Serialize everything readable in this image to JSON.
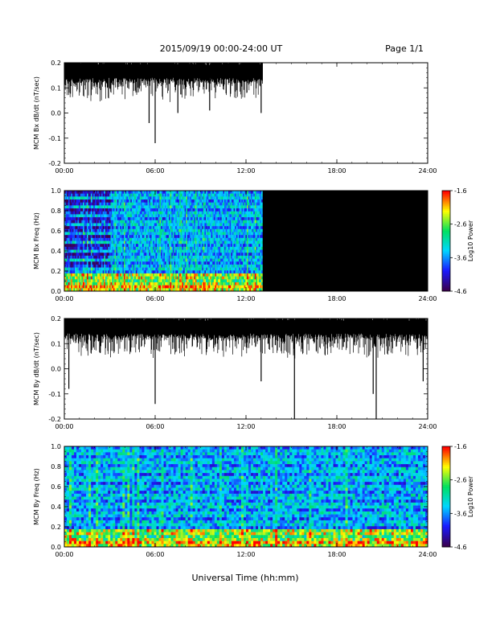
{
  "header": {
    "date_range": "2015/09/19  00:00-24:00 UT",
    "page": "Page 1/1"
  },
  "colors": {
    "trace": "#000000",
    "no_data": "#000000",
    "colormap": [
      "#3a0050",
      "#1a1aff",
      "#00d7ff",
      "#00e060",
      "#ffff00",
      "#ff0000"
    ]
  },
  "chart_data": [
    {
      "id": "bx_dbdt",
      "type": "line",
      "ylabel": "MCM Bx dB/dt (nT/sec)",
      "ylim": [
        -0.2,
        0.2
      ],
      "yticks": [
        "0.2",
        "0.1",
        "0.0",
        "-0.1",
        "-0.2"
      ],
      "xticks": [
        "00:00",
        "06:00",
        "12:00",
        "18:00",
        "24:00"
      ],
      "xlim_hours": [
        0,
        24
      ],
      "data_end_hour": 13.1,
      "baseline": 0.15,
      "spikes": [
        {
          "hour": 5.6,
          "value": -0.04
        },
        {
          "hour": 6.0,
          "value": -0.12
        },
        {
          "hour": 7.5,
          "value": 0.0
        },
        {
          "hour": 9.6,
          "value": 0.01
        },
        {
          "hour": 13.0,
          "value": 0.0
        }
      ]
    },
    {
      "id": "bx_spec",
      "type": "heatmap",
      "ylabel": "MCM Bx Freq (Hz)",
      "yticks": [
        "1.0",
        "0.8",
        "0.6",
        "0.4",
        "0.2",
        "0.0"
      ],
      "xticks": [
        "00:00",
        "06:00",
        "12:00",
        "18:00",
        "24:00"
      ],
      "ylim": [
        0.0,
        1.0
      ],
      "xlim_hours": [
        0,
        24
      ],
      "data_end_hour": 13.1,
      "colorbar_label": "Log10 Power",
      "colorbar_ticks": [
        "-1.6",
        "-2.6",
        "-3.6",
        "-4.6"
      ],
      "clim": [
        -4.6,
        -1.6
      ]
    },
    {
      "id": "by_dbdt",
      "type": "line",
      "ylabel": "MCM By dB/dt (nT/sec)",
      "ylim": [
        -0.2,
        0.2
      ],
      "yticks": [
        "0.2",
        "0.1",
        "0.0",
        "-0.1",
        "-0.2"
      ],
      "xticks": [
        "00:00",
        "06:00",
        "12:00",
        "18:00",
        "24:00"
      ],
      "xlim_hours": [
        0,
        24
      ],
      "data_end_hour": 24,
      "baseline": 0.15,
      "spikes": [
        {
          "hour": 0.3,
          "value": -0.08
        },
        {
          "hour": 6.0,
          "value": -0.14
        },
        {
          "hour": 13.0,
          "value": -0.05
        },
        {
          "hour": 15.2,
          "value": -0.2
        },
        {
          "hour": 20.4,
          "value": -0.1
        },
        {
          "hour": 20.6,
          "value": -0.2
        },
        {
          "hour": 23.7,
          "value": -0.05
        }
      ]
    },
    {
      "id": "by_spec",
      "type": "heatmap",
      "ylabel": "MCM By Freq (Hz)",
      "yticks": [
        "1.0",
        "0.8",
        "0.6",
        "0.4",
        "0.2",
        "0.0"
      ],
      "xticks": [
        "00:00",
        "06:00",
        "12:00",
        "18:00",
        "24:00"
      ],
      "ylim": [
        0.0,
        1.0
      ],
      "xlim_hours": [
        0,
        24
      ],
      "data_end_hour": 24,
      "colorbar_label": "Log10 Power",
      "colorbar_ticks": [
        "-1.6",
        "-2.6",
        "-3.6",
        "-4.6"
      ],
      "clim": [
        -4.6,
        -1.6
      ]
    }
  ],
  "xlabel": "Universal Time (hh:mm)"
}
